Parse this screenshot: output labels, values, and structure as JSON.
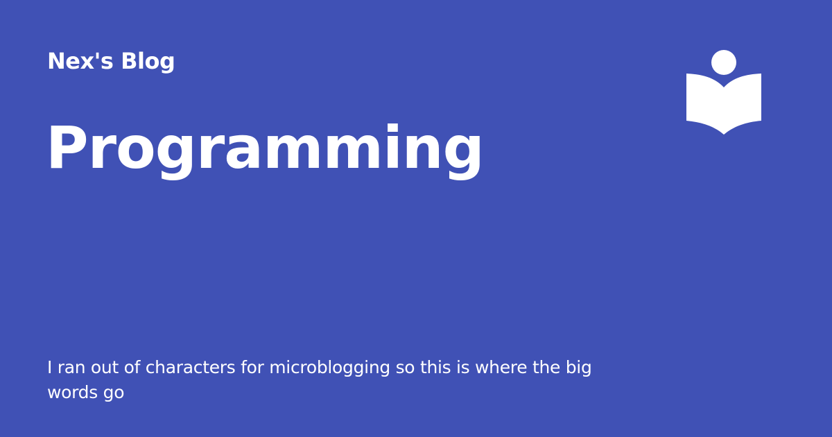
{
  "card": {
    "site_name": "Nex's Blog",
    "title": "Programming",
    "description": "I ran out of characters for microblogging so this is where the big words go",
    "logo_icon": "reader-book-icon",
    "colors": {
      "background": "#4051b5",
      "foreground": "#ffffff"
    }
  }
}
